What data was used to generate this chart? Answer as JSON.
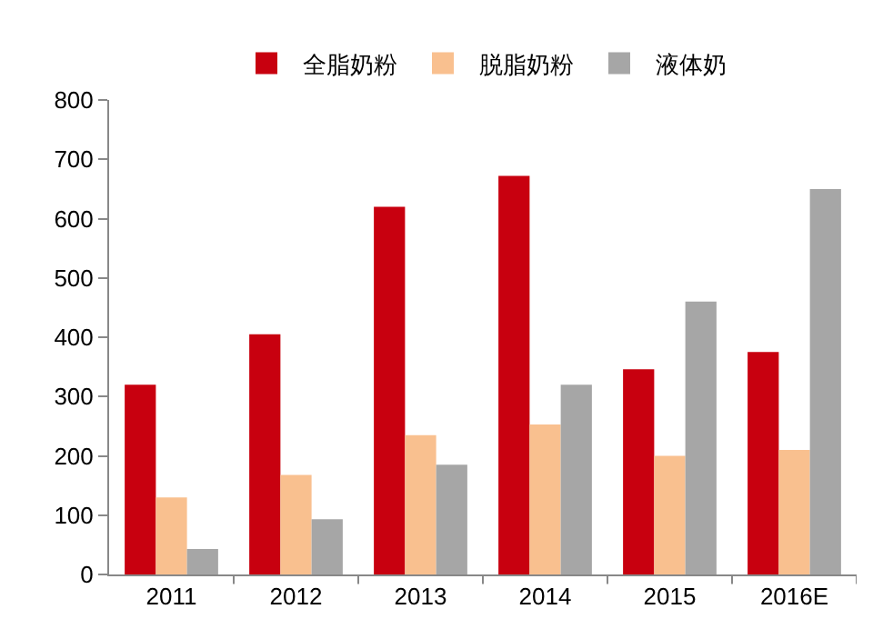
{
  "chart_data": {
    "type": "bar",
    "categories": [
      "2011",
      "2012",
      "2013",
      "2014",
      "2015",
      "2016E"
    ],
    "series": [
      {
        "name": "全脂奶粉",
        "color": "#c8000f",
        "values": [
          320,
          405,
          620,
          672,
          346,
          375
        ]
      },
      {
        "name": "脱脂奶粉",
        "color": "#f9c08f",
        "values": [
          130,
          168,
          235,
          253,
          200,
          210
        ]
      },
      {
        "name": "液体奶",
        "color": "#a6a6a6",
        "values": [
          43,
          93,
          185,
          320,
          460,
          650
        ]
      }
    ],
    "ylim": [
      0,
      800
    ],
    "yticks": [
      0,
      100,
      200,
      300,
      400,
      500,
      600,
      700,
      800
    ],
    "grid": false,
    "legend": "top"
  }
}
